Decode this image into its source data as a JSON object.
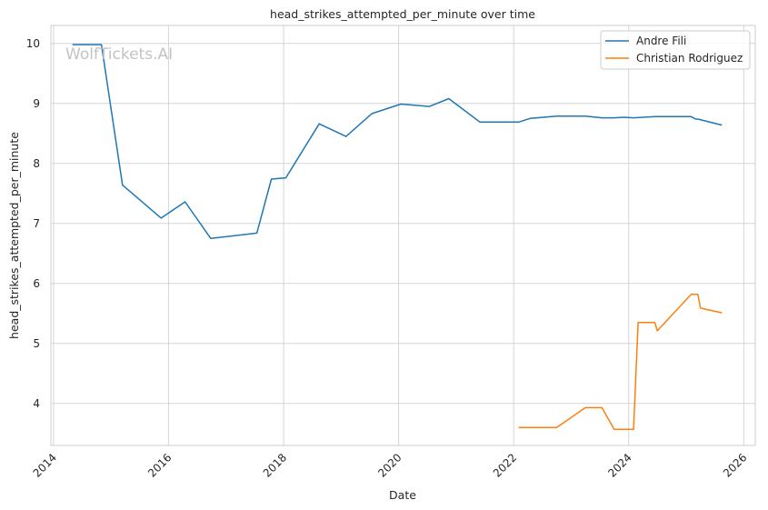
{
  "watermark": "WolfTickets.AI",
  "chart_data": {
    "type": "line",
    "title": "head_strikes_attempted_per_minute over time",
    "xlabel": "Date",
    "ylabel": "head_strikes_attempted_per_minute",
    "xlim": [
      "2013-12-15",
      "2026-03-15"
    ],
    "ylim": [
      3.3,
      10.3
    ],
    "x_ticks": [
      "2014",
      "2016",
      "2018",
      "2020",
      "2022",
      "2024",
      "2026"
    ],
    "y_ticks": [
      4,
      5,
      6,
      7,
      8,
      9,
      10
    ],
    "grid": true,
    "legend_position": "top-right",
    "series": [
      {
        "name": "Andre Fili",
        "color": "#1f77b4",
        "points": [
          [
            "2014-05-01",
            9.98
          ],
          [
            "2014-11-01",
            9.98
          ],
          [
            "2015-03-15",
            7.64
          ],
          [
            "2015-11-15",
            7.09
          ],
          [
            "2016-04-15",
            7.36
          ],
          [
            "2016-09-25",
            6.75
          ],
          [
            "2017-07-15",
            6.84
          ],
          [
            "2017-10-15",
            7.74
          ],
          [
            "2018-01-15",
            7.76
          ],
          [
            "2018-08-15",
            8.66
          ],
          [
            "2019-02-01",
            8.45
          ],
          [
            "2019-07-15",
            8.83
          ],
          [
            "2020-01-15",
            8.99
          ],
          [
            "2020-07-15",
            8.95
          ],
          [
            "2020-11-15",
            9.08
          ],
          [
            "2021-06-01",
            8.69
          ],
          [
            "2022-02-01",
            8.69
          ],
          [
            "2022-04-15",
            8.75
          ],
          [
            "2022-10-01",
            8.79
          ],
          [
            "2023-04-01",
            8.79
          ],
          [
            "2023-07-15",
            8.76
          ],
          [
            "2023-10-01",
            8.76
          ],
          [
            "2023-12-01",
            8.77
          ],
          [
            "2024-02-01",
            8.76
          ],
          [
            "2024-06-15",
            8.78
          ],
          [
            "2025-02-01",
            8.78
          ],
          [
            "2025-03-01",
            8.74
          ],
          [
            "2025-03-15",
            8.74
          ],
          [
            "2025-08-15",
            8.64
          ]
        ]
      },
      {
        "name": "Christian Rodriguez",
        "color": "#ff7f0e",
        "points": [
          [
            "2022-02-01",
            3.6
          ],
          [
            "2022-10-01",
            3.6
          ],
          [
            "2023-04-01",
            3.93
          ],
          [
            "2023-07-15",
            3.93
          ],
          [
            "2023-10-01",
            3.57
          ],
          [
            "2024-02-01",
            3.57
          ],
          [
            "2024-03-01",
            5.35
          ],
          [
            "2024-06-15",
            5.35
          ],
          [
            "2024-07-01",
            5.21
          ],
          [
            "2025-02-01",
            5.82
          ],
          [
            "2025-03-15",
            5.82
          ],
          [
            "2025-04-01",
            5.59
          ],
          [
            "2025-08-15",
            5.51
          ]
        ]
      }
    ]
  }
}
